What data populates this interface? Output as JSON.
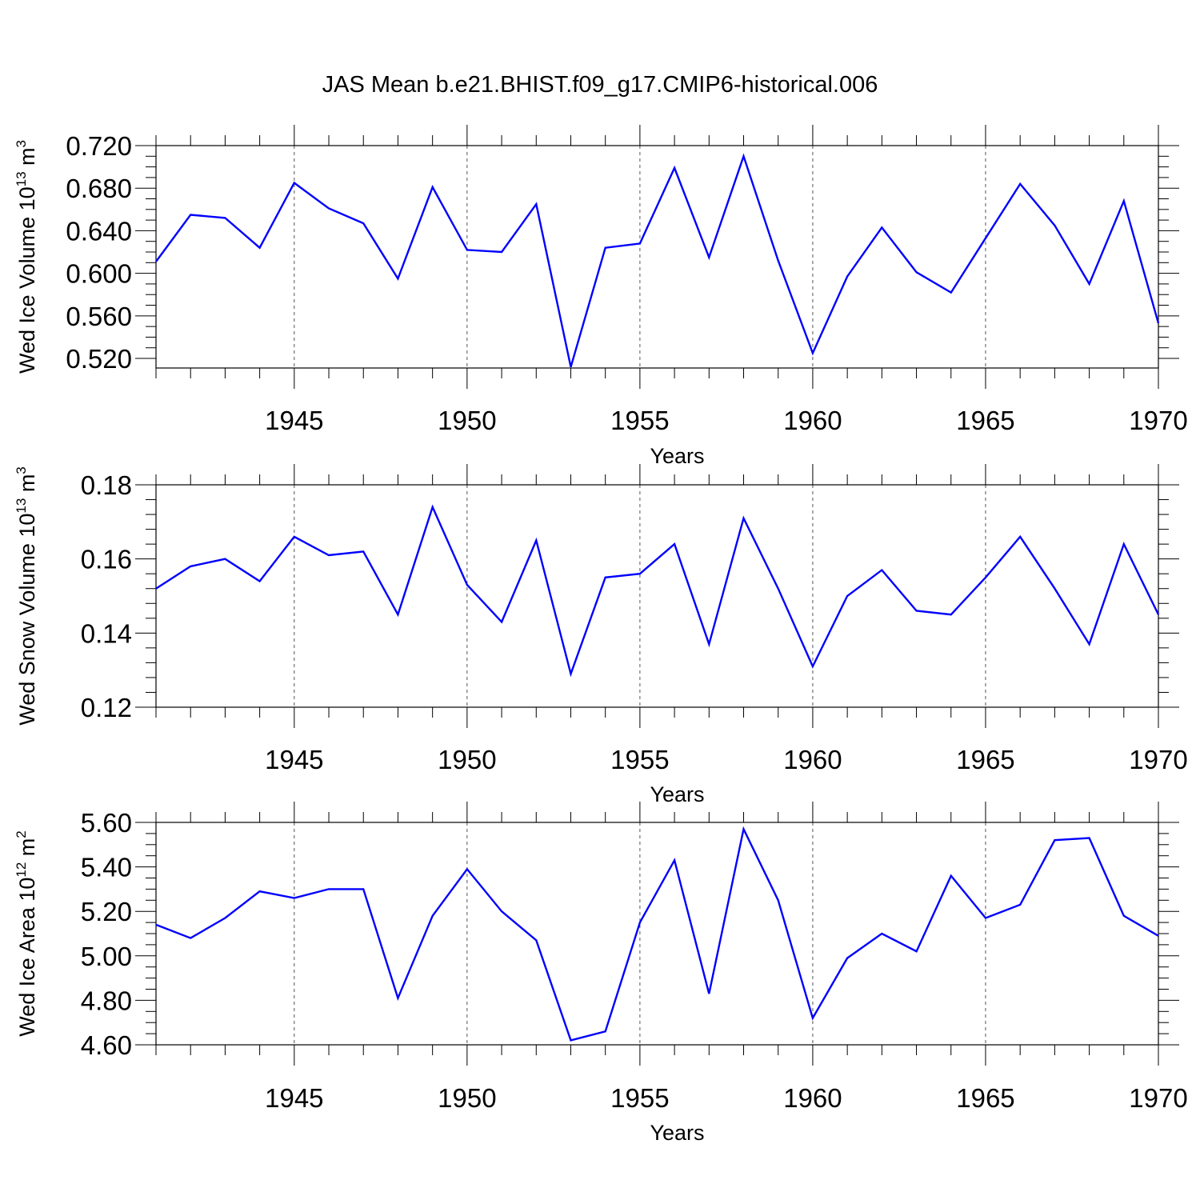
{
  "title": "JAS Mean b.e21.BHIST.f09_g17.CMIP6-historical.006",
  "line_color": "#0000ff",
  "chart_data": [
    {
      "type": "line",
      "title": "JAS Mean b.e21.BHIST.f09_g17.CMIP6-historical.006",
      "xlabel": "Years",
      "ylabel_main": "Wed Ice Volume 10",
      "ylabel_exp": "13",
      "ylabel_unit": " m",
      "ylabel_unit_exp": "3",
      "xlim": [
        1941,
        1970
      ],
      "ylim": [
        0.511,
        0.72
      ],
      "yticks": [
        0.52,
        0.56,
        0.6,
        0.64,
        0.68,
        0.72
      ],
      "ytick_labels": [
        "0.520",
        "0.560",
        "0.600",
        "0.640",
        "0.680",
        "0.720"
      ],
      "yminor_step": 0.01,
      "xticks": [
        1945,
        1950,
        1955,
        1960,
        1965,
        1970
      ],
      "xtick_labels": [
        "1945",
        "1950",
        "1955",
        "1960",
        "1965",
        "1970"
      ],
      "x": [
        1941,
        1942,
        1943,
        1944,
        1945,
        1946,
        1947,
        1948,
        1949,
        1950,
        1951,
        1952,
        1953,
        1954,
        1955,
        1956,
        1957,
        1958,
        1959,
        1960,
        1961,
        1962,
        1963,
        1964,
        1965,
        1966,
        1967,
        1968,
        1969,
        1970
      ],
      "series": [
        {
          "name": "Wed Ice Volume",
          "values": [
            0.611,
            0.655,
            0.652,
            0.624,
            0.685,
            0.661,
            0.647,
            0.595,
            0.681,
            0.622,
            0.62,
            0.665,
            0.512,
            0.624,
            0.628,
            0.699,
            0.615,
            0.71,
            0.612,
            0.525,
            0.597,
            0.643,
            0.601,
            0.582,
            0.633,
            0.684,
            0.645,
            0.59,
            0.668,
            0.553
          ]
        }
      ]
    },
    {
      "type": "line",
      "xlabel": "Years",
      "ylabel_main": "Wed Snow Volume 10",
      "ylabel_exp": "13",
      "ylabel_unit": " m",
      "ylabel_unit_exp": "3",
      "xlim": [
        1941,
        1970
      ],
      "ylim": [
        0.12,
        0.18
      ],
      "yticks": [
        0.12,
        0.14,
        0.16,
        0.18
      ],
      "ytick_labels": [
        "0.12",
        "0.14",
        "0.16",
        "0.18"
      ],
      "yminor_step": 0.004,
      "xticks": [
        1945,
        1950,
        1955,
        1960,
        1965,
        1970
      ],
      "xtick_labels": [
        "1945",
        "1950",
        "1955",
        "1960",
        "1965",
        "1970"
      ],
      "x": [
        1941,
        1942,
        1943,
        1944,
        1945,
        1946,
        1947,
        1948,
        1949,
        1950,
        1951,
        1952,
        1953,
        1954,
        1955,
        1956,
        1957,
        1958,
        1959,
        1960,
        1961,
        1962,
        1963,
        1964,
        1965,
        1966,
        1967,
        1968,
        1969,
        1970
      ],
      "series": [
        {
          "name": "Wed Snow Volume",
          "values": [
            0.152,
            0.158,
            0.16,
            0.154,
            0.166,
            0.161,
            0.162,
            0.145,
            0.174,
            0.153,
            0.143,
            0.165,
            0.129,
            0.155,
            0.156,
            0.164,
            0.137,
            0.171,
            0.152,
            0.131,
            0.15,
            0.157,
            0.146,
            0.145,
            0.155,
            0.166,
            0.152,
            0.137,
            0.164,
            0.145
          ]
        }
      ]
    },
    {
      "type": "line",
      "xlabel": "Years",
      "ylabel_main": "Wed Ice Area 10",
      "ylabel_exp": "12",
      "ylabel_unit": " m",
      "ylabel_unit_exp": "2",
      "xlim": [
        1941,
        1970
      ],
      "ylim": [
        4.6,
        5.6
      ],
      "yticks": [
        4.6,
        4.8,
        5.0,
        5.2,
        5.4,
        5.6
      ],
      "ytick_labels": [
        "4.60",
        "4.80",
        "5.00",
        "5.20",
        "5.40",
        "5.60"
      ],
      "yminor_step": 0.05,
      "xticks": [
        1945,
        1950,
        1955,
        1960,
        1965,
        1970
      ],
      "xtick_labels": [
        "1945",
        "1950",
        "1955",
        "1960",
        "1965",
        "1970"
      ],
      "x": [
        1941,
        1942,
        1943,
        1944,
        1945,
        1946,
        1947,
        1948,
        1949,
        1950,
        1951,
        1952,
        1953,
        1954,
        1955,
        1956,
        1957,
        1958,
        1959,
        1960,
        1961,
        1962,
        1963,
        1964,
        1965,
        1966,
        1967,
        1968,
        1969,
        1970
      ],
      "series": [
        {
          "name": "Wed Ice Area",
          "values": [
            5.14,
            5.08,
            5.17,
            5.29,
            5.26,
            5.3,
            5.3,
            4.81,
            5.18,
            5.39,
            5.2,
            5.07,
            4.62,
            4.66,
            5.15,
            5.43,
            4.83,
            5.57,
            5.25,
            4.72,
            4.99,
            5.1,
            5.02,
            5.36,
            5.17,
            5.23,
            5.52,
            5.53,
            5.18,
            5.09
          ]
        }
      ]
    }
  ]
}
